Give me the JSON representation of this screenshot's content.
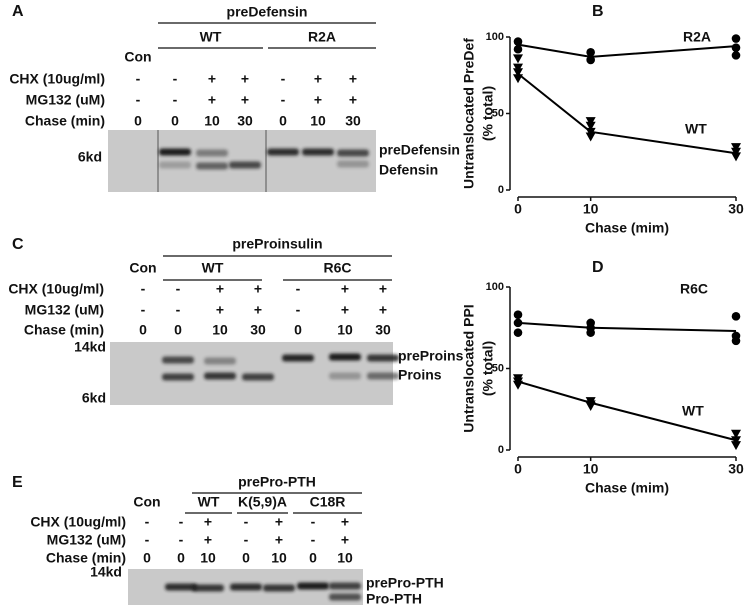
{
  "panel_a": {
    "label": "A",
    "title": "preDefensin",
    "control": "Con",
    "groups": [
      "WT",
      "R2A"
    ],
    "conditions": [
      {
        "name": "CHX (10ug/ml)",
        "marks": [
          "-",
          "-",
          "+",
          "+",
          "-",
          "+",
          "+"
        ]
      },
      {
        "name": "MG132 (uM)",
        "marks": [
          "-",
          "-",
          "+",
          "+",
          "-",
          "+",
          "+"
        ]
      },
      {
        "name": "Chase (min)",
        "marks": [
          "0",
          "0",
          "10",
          "30",
          "0",
          "10",
          "30"
        ]
      }
    ],
    "markers": [
      "6kd"
    ],
    "bands": [
      "preDefensin",
      "Defensin"
    ]
  },
  "panel_c": {
    "label": "C",
    "title": "preProinsulin",
    "control": "Con",
    "groups": [
      "WT",
      "R6C"
    ],
    "conditions": [
      {
        "name": "CHX (10ug/ml)",
        "marks": [
          "-",
          "-",
          "+",
          "+",
          "-",
          "+",
          "+"
        ]
      },
      {
        "name": "MG132 (uM)",
        "marks": [
          "-",
          "-",
          "+",
          "+",
          "-",
          "+",
          "+"
        ]
      },
      {
        "name": "Chase (min)",
        "marks": [
          "0",
          "0",
          "10",
          "30",
          "0",
          "10",
          "30"
        ]
      }
    ],
    "markers": [
      "14kd",
      "6kd"
    ],
    "bands": [
      "preProins",
      "Proins"
    ]
  },
  "panel_e": {
    "label": "E",
    "title": "prePro-PTH",
    "control": "Con",
    "groups": [
      "WT",
      "K(5,9)A",
      "C18R"
    ],
    "conditions": [
      {
        "name": "CHX (10ug/ml)",
        "marks": [
          "-",
          "-",
          "+",
          "-",
          "+",
          "-",
          "+"
        ]
      },
      {
        "name": "MG132 (uM)",
        "marks": [
          "-",
          "-",
          "+",
          "-",
          "+",
          "-",
          "+"
        ]
      },
      {
        "name": "Chase (min)",
        "marks": [
          "0",
          "0",
          "10",
          "0",
          "10",
          "0",
          "10"
        ]
      }
    ],
    "markers": [
      "14kd"
    ],
    "bands": [
      "prePro-PTH",
      "Pro-PTH"
    ]
  },
  "chart_data": [
    {
      "type": "scatter",
      "label": "B",
      "xlabel": "Chase (mim)",
      "ylabel": [
        "Untranslocated PreDef",
        "(% total)"
      ],
      "xlim": [
        0,
        30
      ],
      "xticks": [
        0,
        10,
        30
      ],
      "ylim": [
        0,
        100
      ],
      "yticks": [
        0,
        50,
        100
      ],
      "series": [
        {
          "name": "R2A",
          "marker": "circle",
          "color": "#000000",
          "x": [
            0,
            0,
            10,
            10,
            30,
            30,
            30
          ],
          "values": [
            97,
            92,
            90,
            85,
            99,
            93,
            88
          ],
          "fit_x": [
            0,
            10,
            30
          ],
          "fit": [
            95,
            87,
            94
          ]
        },
        {
          "name": "WT",
          "marker": "triangle",
          "color": "#000000",
          "x": [
            0,
            0,
            0,
            0,
            10,
            10,
            10,
            10,
            30,
            30,
            30
          ],
          "values": [
            86,
            80,
            77,
            73,
            45,
            42,
            38,
            35,
            28,
            25,
            22
          ],
          "fit_x": [
            0,
            10,
            30
          ],
          "fit": [
            76,
            38,
            24
          ]
        }
      ]
    },
    {
      "type": "scatter",
      "label": "D",
      "xlabel": "Chase (mim)",
      "ylabel": [
        "Untranslocated PPI",
        "(% total)"
      ],
      "xlim": [
        0,
        30
      ],
      "xticks": [
        0,
        10,
        30
      ],
      "ylim": [
        0,
        100
      ],
      "yticks": [
        0,
        50,
        100
      ],
      "series": [
        {
          "name": "R6C",
          "marker": "circle",
          "color": "#000000",
          "x": [
            0,
            0,
            0,
            10,
            10,
            10,
            30,
            30,
            30
          ],
          "values": [
            83,
            78,
            72,
            78,
            75,
            72,
            82,
            70,
            67
          ],
          "fit_x": [
            0,
            10,
            30
          ],
          "fit": [
            78,
            75,
            73
          ]
        },
        {
          "name": "WT",
          "marker": "triangle",
          "color": "#000000",
          "x": [
            0,
            0,
            0,
            10,
            10,
            10,
            30,
            30,
            30
          ],
          "values": [
            44,
            42,
            40,
            30,
            28,
            27,
            10,
            6,
            3
          ],
          "fit_x": [
            0,
            10,
            30
          ],
          "fit": [
            42,
            29,
            6
          ]
        }
      ]
    }
  ]
}
